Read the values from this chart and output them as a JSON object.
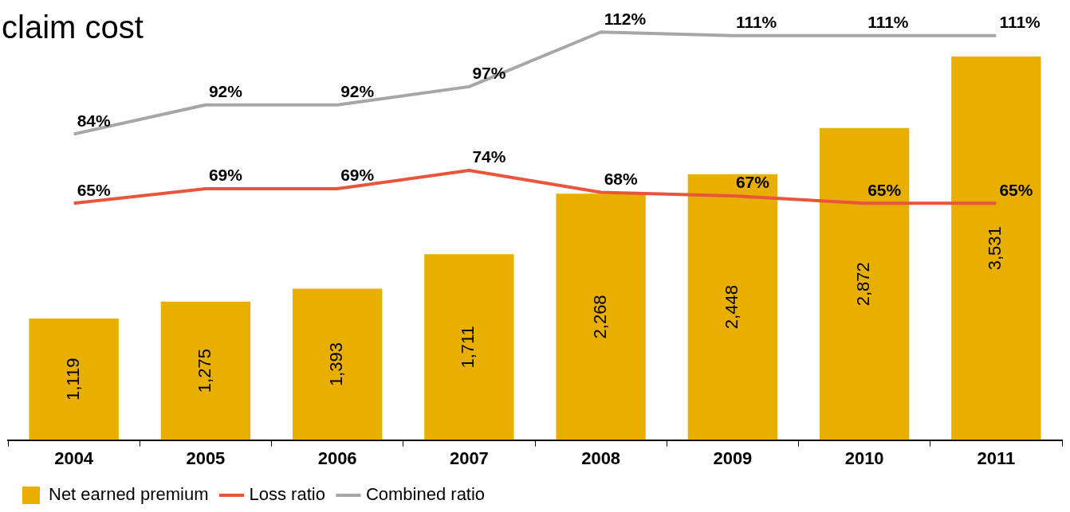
{
  "chart_data": {
    "type": "bar",
    "title": "claim cost",
    "categories": [
      "2004",
      "2005",
      "2006",
      "2007",
      "2008",
      "2009",
      "2010",
      "2011"
    ],
    "series": [
      {
        "name": "Net earned premium",
        "type": "bar",
        "color": "#e8ae00",
        "values": [
          1119,
          1275,
          1393,
          1711,
          2268,
          2448,
          2872,
          3531
        ],
        "value_labels": [
          "1,119",
          "1,275",
          "1,393",
          "1,711",
          "2,268",
          "2,448",
          "2,872",
          "3,531"
        ]
      },
      {
        "name": "Loss ratio",
        "type": "line",
        "axis": "y2",
        "color": "#e8553a",
        "values": [
          65,
          69,
          69,
          74,
          68,
          67,
          65,
          65
        ],
        "value_labels": [
          "65%",
          "69%",
          "69%",
          "74%",
          "68%",
          "67%",
          "65%",
          "65%"
        ]
      },
      {
        "name": "Combined ratio",
        "type": "line",
        "axis": "y2",
        "color": "#a6a6a6",
        "values": [
          84,
          92,
          92,
          97,
          112,
          111,
          111,
          111
        ],
        "value_labels": [
          "84%",
          "92%",
          "92%",
          "97%",
          "112%",
          "111%",
          "111%",
          "111%"
        ]
      }
    ],
    "legend": "bottom left",
    "marker": "none"
  }
}
